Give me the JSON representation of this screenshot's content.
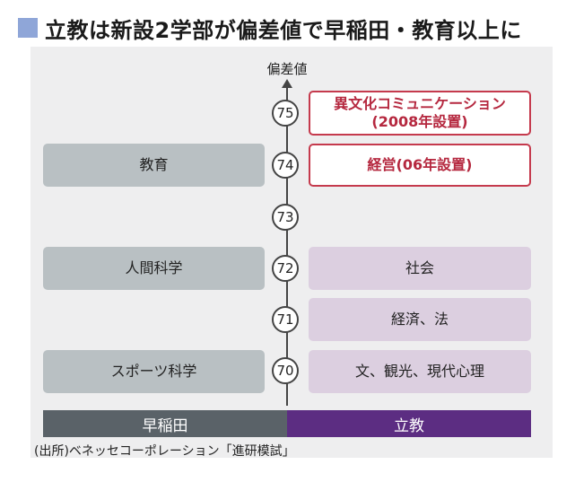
{
  "title": "立教は新設2学部が偏差値で早稲田・教育以上に",
  "axis_label": "偏差値",
  "ticks": [
    "75",
    "74",
    "73",
    "72",
    "71",
    "70"
  ],
  "left_boxes": [
    "教育",
    "人間科学",
    "スポーツ科学"
  ],
  "right_new": [
    {
      "line1": "異文化コミュニケーション",
      "line2": "(2008年設置)"
    },
    {
      "line1": "経営(06年設置)"
    }
  ],
  "right_boxes": [
    "社会",
    "経済、法",
    "文、観光、現代心理"
  ],
  "footer": {
    "left": "早稲田",
    "right": "立教"
  },
  "source": "(出所)ベネッセコーポレーション「進研模試」",
  "colors": {
    "title_square": "#8fa6d8",
    "new_border": "#c53a4d",
    "waseda": "#5a6268",
    "rikkyo": "#5c2d82"
  }
}
